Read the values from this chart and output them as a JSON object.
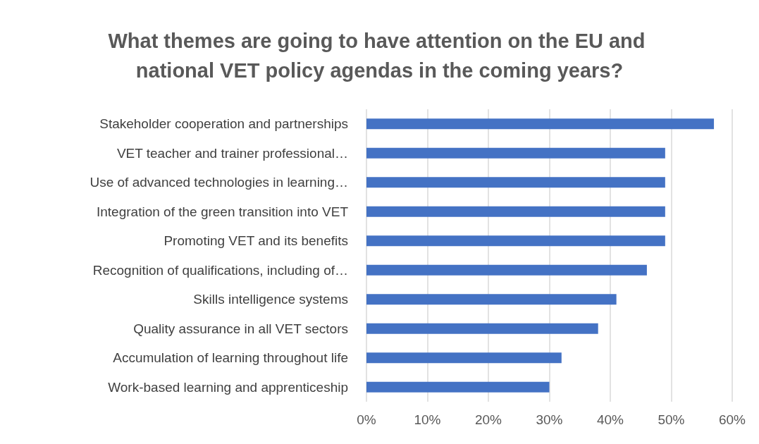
{
  "chart_data": {
    "type": "bar",
    "orientation": "horizontal",
    "title": "What themes are going to have attention on the EU and national VET policy agendas in the coming years?",
    "categories": [
      "Stakeholder cooperation and partnerships",
      "VET teacher and trainer professional…",
      "Use of advanced technologies in learning…",
      "Integration of the green transition into VET",
      "Promoting VET and its benefits",
      "Recognition of qualifications, including of…",
      "Skills intelligence systems",
      "Quality assurance in all VET sectors",
      "Accumulation of learning throughout life",
      "Work-based learning and apprenticeship"
    ],
    "values": [
      57,
      49,
      49,
      49,
      49,
      46,
      41,
      38,
      32,
      30
    ],
    "color": "#4472c4",
    "xlim": [
      0,
      60
    ],
    "xticks": [
      {
        "value": 0,
        "label": "0%"
      },
      {
        "value": 10,
        "label": "10%"
      },
      {
        "value": 20,
        "label": "20%"
      },
      {
        "value": 30,
        "label": "30%"
      },
      {
        "value": 40,
        "label": "40%"
      },
      {
        "value": 50,
        "label": "50%"
      },
      {
        "value": 60,
        "label": "60%"
      }
    ],
    "grid": "x"
  }
}
